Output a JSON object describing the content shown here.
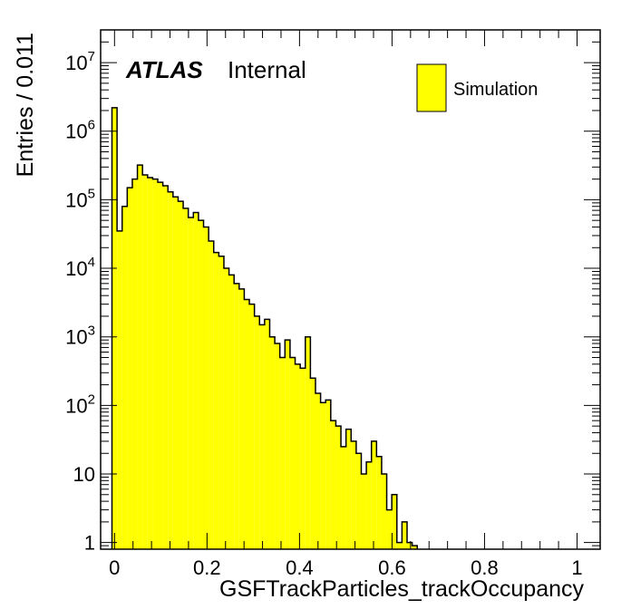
{
  "chart_data": {
    "type": "bar",
    "histogram": true,
    "xlabel": "GSFTrackParticles_trackOccupancy",
    "ylabel": "Entries / 0.011",
    "log_y": true,
    "xlim": [
      -0.03,
      1.05
    ],
    "ylim": [
      0.8,
      30000000
    ],
    "bin_width": 0.011,
    "first_bin_edge": -0.0055,
    "values": [
      2200000,
      35000,
      80000,
      150000,
      200000,
      320000,
      230000,
      210000,
      200000,
      180000,
      160000,
      130000,
      110000,
      95000,
      75000,
      55000,
      65000,
      50000,
      40000,
      25000,
      17000,
      15000,
      10000,
      8000,
      6000,
      5000,
      3500,
      3000,
      2000,
      1500,
      1800,
      1000,
      800,
      500,
      900,
      500,
      400,
      350,
      1000,
      250,
      150,
      110,
      120,
      60,
      50,
      25,
      45,
      30,
      20,
      10,
      15,
      30,
      18,
      10,
      3,
      5,
      1,
      2,
      1,
      0.9,
      0,
      0,
      0,
      0,
      0,
      0,
      0,
      0,
      0,
      0,
      0,
      0,
      0,
      0,
      0,
      0,
      0,
      0,
      0,
      0,
      0,
      0,
      0,
      0,
      0,
      0,
      0,
      0,
      0,
      0,
      0
    ],
    "x_ticks": [
      {
        "value": 0,
        "label": "0"
      },
      {
        "value": 0.2,
        "label": "0.2"
      },
      {
        "value": 0.4,
        "label": "0.4"
      },
      {
        "value": 0.6,
        "label": "0.6"
      },
      {
        "value": 0.8,
        "label": "0.8"
      },
      {
        "value": 1,
        "label": "1"
      }
    ],
    "y_ticks": [
      {
        "value": 1,
        "base": "1",
        "exp": ""
      },
      {
        "value": 10,
        "base": "10",
        "exp": ""
      },
      {
        "value": 100,
        "base": "10",
        "exp": "2"
      },
      {
        "value": 1000,
        "base": "10",
        "exp": "3"
      },
      {
        "value": 10000,
        "base": "10",
        "exp": "4"
      },
      {
        "value": 100000,
        "base": "10",
        "exp": "5"
      },
      {
        "value": 1000000,
        "base": "10",
        "exp": "6"
      },
      {
        "value": 10000000,
        "base": "10",
        "exp": "7"
      }
    ],
    "legend": {
      "entries": [
        {
          "name": "Simulation",
          "color": "#ffff00"
        }
      ],
      "placement": "top-right"
    },
    "label": {
      "atlas": "ATLAS",
      "status": "Internal"
    },
    "fill_color": "#ffff00",
    "line_color": "#000000"
  }
}
